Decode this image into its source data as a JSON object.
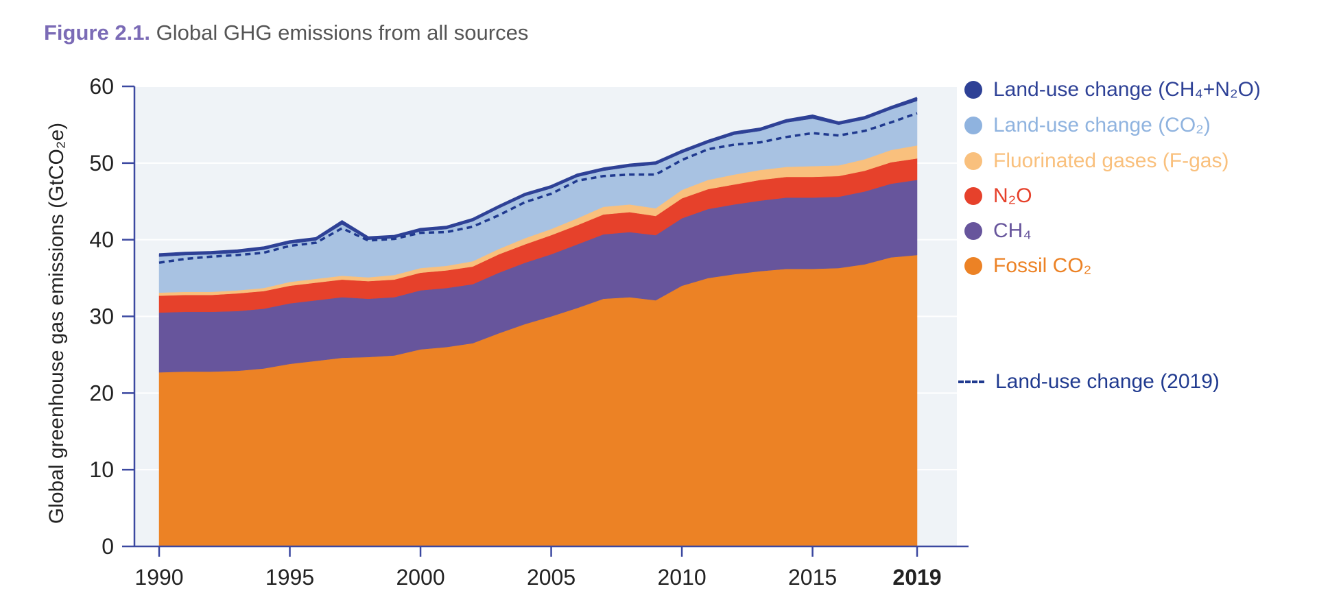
{
  "figure": {
    "number_label": "Figure 2.1.",
    "title_text": "Global GHG emissions from all sources"
  },
  "colors": {
    "fossil_co2": "#ec8225",
    "ch4": "#67559c",
    "n2o": "#e6412b",
    "fgas": "#f9c07d",
    "luc_co2": "#a8c2e2",
    "luc_ch4_n2o": "#2e4196",
    "luc_2019_line": "#203a8f",
    "axis": "#3b48a0",
    "plot_bg": "#eff3f7"
  },
  "chart_data": {
    "type": "area",
    "stacked": true,
    "x": [
      1990,
      1991,
      1992,
      1993,
      1994,
      1995,
      1996,
      1997,
      1998,
      1999,
      2000,
      2001,
      2002,
      2003,
      2004,
      2005,
      2006,
      2007,
      2008,
      2009,
      2010,
      2011,
      2012,
      2013,
      2014,
      2015,
      2016,
      2017,
      2018,
      2019
    ],
    "series": [
      {
        "name": "Fossil CO₂",
        "values": [
          22.7,
          22.8,
          22.8,
          22.9,
          23.2,
          23.8,
          24.2,
          24.6,
          24.7,
          24.9,
          25.7,
          26.0,
          26.5,
          27.8,
          29.0,
          30.0,
          31.1,
          32.3,
          32.5,
          32.1,
          34.0,
          35.0,
          35.5,
          35.9,
          36.2,
          36.2,
          36.3,
          36.8,
          37.7,
          38.0
        ]
      },
      {
        "name": "CH₄",
        "values": [
          7.8,
          7.8,
          7.8,
          7.8,
          7.8,
          7.9,
          7.9,
          7.9,
          7.6,
          7.6,
          7.7,
          7.7,
          7.7,
          7.9,
          8.0,
          8.1,
          8.3,
          8.4,
          8.5,
          8.5,
          8.8,
          9.0,
          9.1,
          9.2,
          9.3,
          9.3,
          9.3,
          9.5,
          9.6,
          9.8
        ]
      },
      {
        "name": "N₂O",
        "values": [
          2.2,
          2.2,
          2.2,
          2.3,
          2.3,
          2.3,
          2.3,
          2.3,
          2.3,
          2.3,
          2.3,
          2.3,
          2.3,
          2.4,
          2.4,
          2.5,
          2.5,
          2.6,
          2.6,
          2.5,
          2.6,
          2.6,
          2.6,
          2.7,
          2.7,
          2.7,
          2.7,
          2.7,
          2.8,
          2.8
        ]
      },
      {
        "name": "Fluorinated gases (F-gas)",
        "values": [
          0.4,
          0.4,
          0.4,
          0.4,
          0.4,
          0.5,
          0.5,
          0.5,
          0.5,
          0.6,
          0.6,
          0.6,
          0.7,
          0.7,
          0.8,
          0.8,
          0.9,
          1.0,
          1.0,
          1.0,
          1.1,
          1.2,
          1.3,
          1.3,
          1.3,
          1.4,
          1.4,
          1.5,
          1.6,
          1.7
        ]
      },
      {
        "name": "Land-use change (CO₂)",
        "values": [
          4.7,
          4.8,
          4.9,
          4.9,
          5.0,
          5.0,
          5.0,
          6.7,
          4.9,
          4.8,
          4.8,
          4.8,
          5.2,
          5.3,
          5.5,
          5.3,
          5.4,
          4.7,
          4.9,
          5.7,
          4.8,
          4.8,
          5.2,
          5.1,
          5.8,
          6.2,
          5.3,
          5.2,
          5.3,
          5.8
        ]
      },
      {
        "name": "Land-use change (CH₄+N₂O)",
        "values": [
          0.3,
          0.3,
          0.3,
          0.3,
          0.3,
          0.3,
          0.3,
          0.4,
          0.3,
          0.3,
          0.3,
          0.3,
          0.3,
          0.3,
          0.3,
          0.3,
          0.3,
          0.3,
          0.3,
          0.3,
          0.3,
          0.3,
          0.3,
          0.3,
          0.3,
          0.4,
          0.3,
          0.3,
          0.3,
          0.4
        ]
      }
    ],
    "dashed_line": {
      "name": "Land-use  change (2019)",
      "values": [
        37.0,
        37.5,
        37.8,
        38.0,
        38.3,
        39.2,
        39.6,
        41.5,
        39.9,
        40.1,
        40.9,
        41.0,
        41.7,
        43.2,
        44.9,
        46.0,
        47.7,
        48.3,
        48.5,
        48.5,
        50.4,
        51.8,
        52.4,
        52.7,
        53.4,
        53.9,
        53.6,
        54.2,
        55.3,
        56.5
      ]
    },
    "xlabel": "",
    "ylabel": "Global greenhouse gas emissions (GtCO₂e)",
    "ylim": [
      0,
      60
    ],
    "yticks": [
      "0",
      "10",
      "20",
      "30",
      "40",
      "50",
      "60"
    ],
    "xticks": [
      "1990",
      "1995",
      "2000",
      "2005",
      "2010",
      "2015",
      "2019"
    ],
    "xlim": [
      1990,
      2019
    ],
    "grid": true,
    "legend_position": "right"
  },
  "legend": {
    "items": [
      {
        "label": "Land-use change (CH₄+N₂O)",
        "color": "#2e4196"
      },
      {
        "label": "Land-use change (CO₂)",
        "color": "#8fb3df"
      },
      {
        "label": "Fluorinated gases (F-gas)",
        "color": "#f9c07d"
      },
      {
        "label": "N₂O",
        "color": "#e6412b"
      },
      {
        "label": "CH₄",
        "color": "#67559c"
      },
      {
        "label": "Fossil CO₂",
        "color": "#ec8225"
      }
    ],
    "dash_item": {
      "label": "Land-use  change (2019)",
      "color": "#203a8f"
    }
  }
}
